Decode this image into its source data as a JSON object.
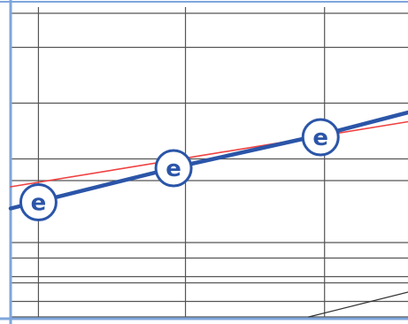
{
  "chart_data": {
    "type": "line",
    "title": "",
    "xlabel": "",
    "ylabel": "",
    "grid": true,
    "xlim": [
      0,
      1
    ],
    "ylim": [
      0,
      1
    ],
    "x_gridlines": [
      0.07,
      0.44,
      0.79
    ],
    "y_gridlines": [
      0.0,
      0.05,
      0.11,
      0.13,
      0.19,
      0.24,
      0.44,
      0.51,
      0.69,
      0.87,
      0.98
    ],
    "series": [
      {
        "name": "",
        "color": "#2b55a8",
        "values": [
          {
            "x": 0.0,
            "y": 0.35
          },
          {
            "x": 0.44,
            "y": 0.49
          },
          {
            "x": 0.79,
            "y": 0.59
          },
          {
            "x": 1.0,
            "y": 0.66
          }
        ],
        "markers": [
          {
            "x": 0.07,
            "y": 0.37,
            "label": "e"
          },
          {
            "x": 0.41,
            "y": 0.48,
            "label": "e"
          },
          {
            "x": 0.78,
            "y": 0.58,
            "label": "e"
          }
        ]
      },
      {
        "name": "",
        "color": "#f04040",
        "values": [
          {
            "x": 0.0,
            "y": 0.42
          },
          {
            "x": 1.0,
            "y": 0.63
          }
        ]
      },
      {
        "name": "",
        "color": "#333333",
        "values": [
          {
            "x": 0.75,
            "y": 0.0
          },
          {
            "x": 1.0,
            "y": 0.08
          }
        ]
      }
    ]
  },
  "colors": {
    "frame": "#7ea6dc",
    "grid": "#555555",
    "marker_fill": "#ffffff",
    "marker_stroke": "#2b55a8",
    "marker_text": "#2b55a8"
  }
}
